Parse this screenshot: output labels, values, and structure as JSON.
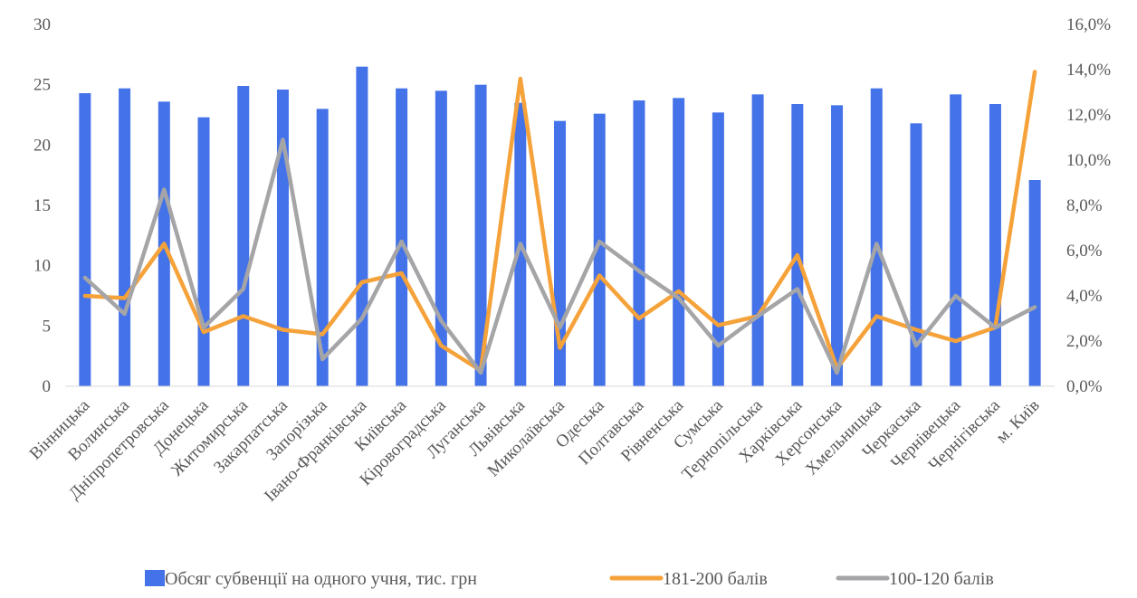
{
  "chart_data": {
    "type": "bar",
    "categories": [
      "Вінницька",
      "Волинська",
      "Дніпропетровська",
      "Донецька",
      "Житомирська",
      "Закарпатська",
      "Запорізька",
      "Івано-Франківська",
      "Київська",
      "Кіровоградська",
      "Луганська",
      "Львівська",
      "Миколаївська",
      "Одеська",
      "Полтавська",
      "Рівненська",
      "Сумська",
      "Тернопільська",
      "Харківська",
      "Херсонська",
      "Хмельницька",
      "Черкаська",
      "Чернівецька",
      "Чернігівська",
      "м. Київ"
    ],
    "series": [
      {
        "name": "Обсяг субвенції на одного учня, тис. грн",
        "type": "bar",
        "axis": "left",
        "color": "#4472E8",
        "values": [
          24.3,
          24.7,
          23.6,
          22.3,
          24.9,
          24.6,
          23.0,
          26.5,
          24.7,
          24.5,
          25.0,
          23.5,
          22.0,
          22.6,
          23.7,
          23.9,
          22.7,
          24.2,
          23.4,
          23.3,
          24.7,
          21.8,
          24.2,
          23.4,
          17.1
        ]
      },
      {
        "name": "181-200 балів",
        "type": "line",
        "axis": "right",
        "color": "#F5A23A",
        "values": [
          4.0,
          3.9,
          6.3,
          2.4,
          3.1,
          2.5,
          2.3,
          4.6,
          5.0,
          1.8,
          0.7,
          13.6,
          1.7,
          4.9,
          3.0,
          4.2,
          2.7,
          3.1,
          5.8,
          0.8,
          3.1,
          2.5,
          2.0,
          2.6,
          13.9
        ]
      },
      {
        "name": "100-120 балів",
        "type": "line",
        "axis": "right",
        "color": "#A5A5A8",
        "values": [
          4.8,
          3.2,
          8.7,
          2.6,
          4.3,
          10.9,
          1.2,
          3.0,
          6.4,
          2.9,
          0.6,
          6.3,
          2.6,
          6.4,
          5.1,
          3.9,
          1.8,
          3.1,
          4.3,
          0.6,
          6.3,
          1.8,
          4.0,
          2.6,
          3.5
        ]
      }
    ],
    "y_left": {
      "min": 0,
      "max": 30,
      "step": 5,
      "tick_labels": [
        "0",
        "5",
        "10",
        "15",
        "20",
        "25",
        "30"
      ]
    },
    "y_right": {
      "min": 0,
      "max": 16,
      "step": 2,
      "tick_labels": [
        "0,0%",
        "2,0%",
        "4,0%",
        "6,0%",
        "8,0%",
        "10,0%",
        "12,0%",
        "14,0%",
        "16,0%"
      ]
    },
    "grid": false,
    "legend_position": "bottom"
  }
}
